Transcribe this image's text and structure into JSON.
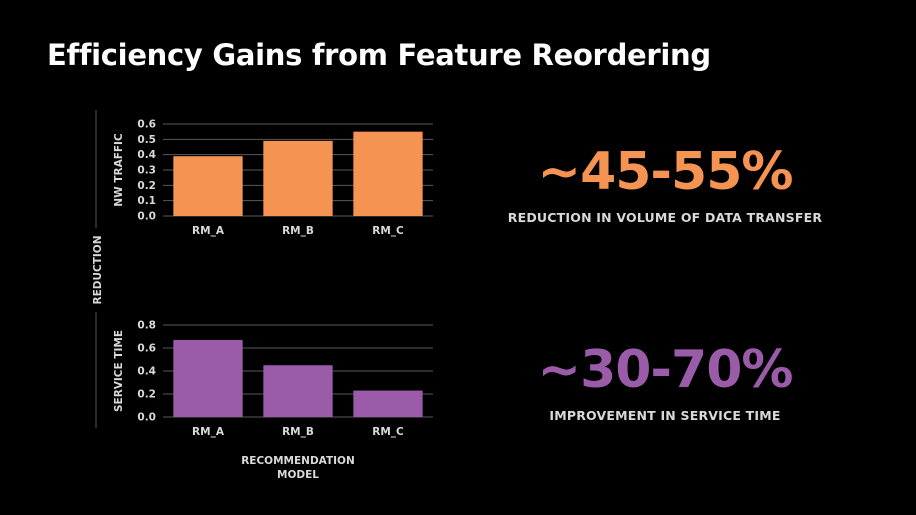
{
  "title": "Efficiency Gains from Feature Reordering",
  "shared_ylabel": "REDUCTION",
  "shared_xlabel_lines": [
    "RECOMMENDATION",
    "MODEL"
  ],
  "stats": [
    {
      "value": "~45-55%",
      "caption": "REDUCTION IN VOLUME OF DATA TRANSFER",
      "color": "#f59452"
    },
    {
      "value": "~30-70%",
      "caption": "IMPROVEMENT IN SERVICE TIME",
      "color": "#9a5ba8"
    }
  ],
  "chart_data": [
    {
      "type": "bar",
      "ylabel": "NW TRAFFIC",
      "categories": [
        "RM_A",
        "RM_B",
        "RM_C"
      ],
      "values": [
        0.39,
        0.49,
        0.55
      ],
      "ylim": [
        0,
        0.6
      ],
      "yticks": [
        "0.0",
        "0.1",
        "0.2",
        "0.3",
        "0.4",
        "0.5",
        "0.6"
      ],
      "color": "#f59452",
      "grid": true
    },
    {
      "type": "bar",
      "ylabel": "SERVICE TIME",
      "categories": [
        "RM_A",
        "RM_B",
        "RM_C"
      ],
      "values": [
        0.67,
        0.45,
        0.23
      ],
      "ylim": [
        0,
        0.8
      ],
      "yticks": [
        "0.0",
        "0.2",
        "0.4",
        "0.6",
        "0.8"
      ],
      "color": "#9a5ba8",
      "grid": true
    }
  ]
}
